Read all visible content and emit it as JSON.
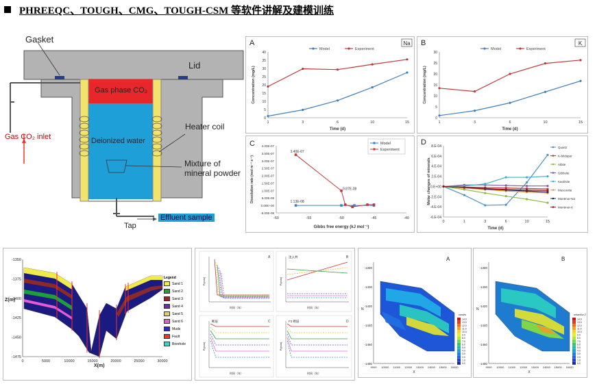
{
  "header": {
    "bullet": "■",
    "title": "PHREEQC、TOUGH、CMG、TOUGH-CSM 等软件讲解及建模训练"
  },
  "apparatus": {
    "gasket": "Gasket",
    "lid": "Lid",
    "gas_phase": "Gas phase CO₂",
    "heater": "Heater coil",
    "water": "Deionized water",
    "mixture_line1": "Mixture of",
    "mixture_line2": "mineral powder",
    "inlet": "Gas CO₂ inlet",
    "tap": "Tap",
    "effluent": "Effluent sample",
    "colors": {
      "gas": "#e8262b",
      "water": "#1e9fd8",
      "heater": "#f2e36c",
      "vessel": "#b3b3b3"
    }
  },
  "chart_data": [
    {
      "id": "A",
      "type": "line",
      "title": "A",
      "corner": "Na",
      "categories": [
        "1",
        "3",
        "6",
        "10",
        "15"
      ],
      "series": [
        {
          "name": "Model",
          "color": "#3f7fc0",
          "values": [
            1.0,
            4.8,
            10.5,
            18.5,
            27.5
          ]
        },
        {
          "name": "Experiment",
          "color": "#c0373a",
          "values": [
            19.0,
            29.8,
            29.3,
            32.5,
            35.5
          ]
        }
      ],
      "xlabel": "Time (d)",
      "ylabel": "Concentration (mg/L)",
      "ylim": [
        0,
        40
      ],
      "yticks": [
        0,
        5,
        10,
        15,
        20,
        25,
        30,
        35,
        40
      ]
    },
    {
      "id": "B",
      "type": "line",
      "title": "B",
      "corner": "K",
      "categories": [
        "1",
        "3",
        "6",
        "10",
        "15"
      ],
      "series": [
        {
          "name": "Model",
          "color": "#3f7fc0",
          "values": [
            1.0,
            3.2,
            6.8,
            11.8,
            16.8
          ]
        },
        {
          "name": "Experiment",
          "color": "#c0373a",
          "values": [
            13.5,
            12.0,
            20.0,
            24.8,
            26.3
          ]
        }
      ],
      "xlabel": "Time (d)",
      "ylabel": "Concentration (mg/L)",
      "ylim": [
        0,
        30
      ],
      "yticks": [
        0,
        5,
        10,
        15,
        20,
        25,
        30
      ]
    },
    {
      "id": "C",
      "type": "scatter",
      "title": "C",
      "series": [
        {
          "name": "Model",
          "color": "#3f7fc0",
          "points": [
            [
              -57,
              0
            ],
            [
              -50,
              0
            ],
            [
              -48,
              0
            ],
            [
              -45,
              0
            ]
          ]
        },
        {
          "name": "Experiment",
          "color": "#c0373a",
          "points": [
            [
              -57,
              3.4e-07
            ],
            [
              -50,
              9.87e-08
            ],
            [
              -49.4,
              5e-09
            ],
            [
              -48.3,
              -1e-08
            ],
            [
              -46,
              5e-09
            ],
            [
              -45,
              5e-09
            ]
          ]
        }
      ],
      "annotations": [
        "3.40E-07",
        "9.87E-08",
        "1.13E-08"
      ],
      "xlabel": "Gibbs free energy (kJ mol⁻¹)",
      "ylabel": "Dissolution rate (mol m⁻² s⁻¹)",
      "xlim": [
        -60,
        -40
      ],
      "xticks": [
        "-60",
        "-55",
        "-50",
        "-45",
        "-40"
      ],
      "ylim": [
        -5e-08,
        4e-07
      ],
      "yticks": [
        "4.00E-07",
        "3.50E-07",
        "3.00E-07",
        "2.50E-07",
        "2.00E-07",
        "1.50E-07",
        "1.00E-07",
        "5.00E-08",
        "0.00E+00",
        "-5.00E-08"
      ]
    },
    {
      "id": "D",
      "type": "line",
      "title": "D",
      "categories": [
        "0",
        "1",
        "3",
        "6",
        "10",
        "15"
      ],
      "series": [
        {
          "name": "Quartz",
          "color": "#4a90c8",
          "values": [
            0,
            -1.7,
            -3.7,
            -3.6,
            0.8,
            6.2
          ]
        },
        {
          "name": "K-feldspar",
          "color": "#c0373a",
          "values": [
            0,
            -0.1,
            -0.2,
            -0.3,
            -0.4,
            -0.5
          ]
        },
        {
          "name": "Albite",
          "color": "#8fb840",
          "values": [
            0,
            -0.6,
            -1.3,
            -1.9,
            -2.5,
            -3.2
          ]
        },
        {
          "name": "Gibbsite",
          "color": "#7d5aa8",
          "values": [
            0,
            0.3,
            0.3,
            0.2,
            0.1,
            0.1
          ]
        },
        {
          "name": "Kaolinite",
          "color": "#3ab0c6",
          "values": [
            0,
            0.1,
            0.5,
            1.8,
            1.8,
            2.0
          ]
        },
        {
          "name": "Muscovite",
          "color": "#f29a38",
          "values": [
            0,
            -0.3,
            -0.6,
            -0.9,
            -1.1,
            -1.3
          ]
        },
        {
          "name": "Montmor-Na",
          "color": "#1b2a5c",
          "values": [
            0,
            -0.2,
            -0.5,
            -0.7,
            -0.9,
            -1.1
          ]
        },
        {
          "name": "Montmor-K",
          "color": "#8b1c1c",
          "values": [
            0,
            -0.2,
            -0.4,
            -0.6,
            -0.7,
            -0.8
          ]
        }
      ],
      "xlabel": "Time (d)",
      "ylabel": "Molar changes of minerals",
      "ylim": [
        -6,
        8
      ],
      "yticks": [
        "8.E-04",
        "6.E-04",
        "4.E-04",
        "2.E-04",
        "0.E+00",
        "-2.E-04",
        "-4.E-04",
        "-6.E-04"
      ]
    }
  ],
  "geo_model": {
    "yticks": [
      "-1350",
      "-1375",
      "-1400",
      "-1425",
      "-1450",
      "-1475"
    ],
    "xticks": [
      "0",
      "5000",
      "10000",
      "15000",
      "20000",
      "25000",
      "30000"
    ],
    "ylabel": "Z(m)",
    "xlabel": "X(m)",
    "legend_title": "Legend",
    "legend": [
      {
        "name": "Sand 1",
        "color": "#f0eb4a"
      },
      {
        "name": "Sand 2",
        "color": "#1f9e3a"
      },
      {
        "name": "Sand 3",
        "color": "#8c2a2a"
      },
      {
        "name": "Sand 4",
        "color": "#6b2fa3"
      },
      {
        "name": "Sand 5",
        "color": "#d6d17a"
      },
      {
        "name": "Sand 6",
        "color": "#e85ad4"
      },
      {
        "name": "Muds",
        "color": "#2b2bb8"
      },
      {
        "name": "Fault",
        "color": "#e33"
      },
      {
        "name": "Borehole",
        "color": "#4cc"
      }
    ]
  },
  "small_charts": {
    "panels": [
      "A",
      "B",
      "C",
      "D"
    ],
    "xlabel": "时间（年）",
    "ylabel": "P(psia)",
    "labels": {
      "A": "",
      "B": "注入井",
      "C": "断层",
      "D": "F3 断层"
    }
  },
  "contour_maps": {
    "A": {
      "label": "A",
      "legend_title": "sand/w"
    },
    "B": {
      "label": "B",
      "legend_title": "w/sand/w-2"
    },
    "yticks": [
      "-1380",
      "-1400",
      "-1420",
      "-1440",
      "-1460",
      "-1480"
    ],
    "xticks": [
      "9000",
      "10000",
      "11000",
      "12000",
      "13000",
      "14000",
      "15000",
      "16000"
    ],
    "ylabel": "N",
    "xlabel": "X",
    "scale": [
      "14.0",
      "13.0",
      "12.0",
      "11.0",
      "10.0",
      "9.0",
      "8.0",
      "7.0",
      "6.0",
      "5.0",
      "4.0",
      "3.0",
      "2.0",
      "1.0",
      "0.0"
    ]
  }
}
